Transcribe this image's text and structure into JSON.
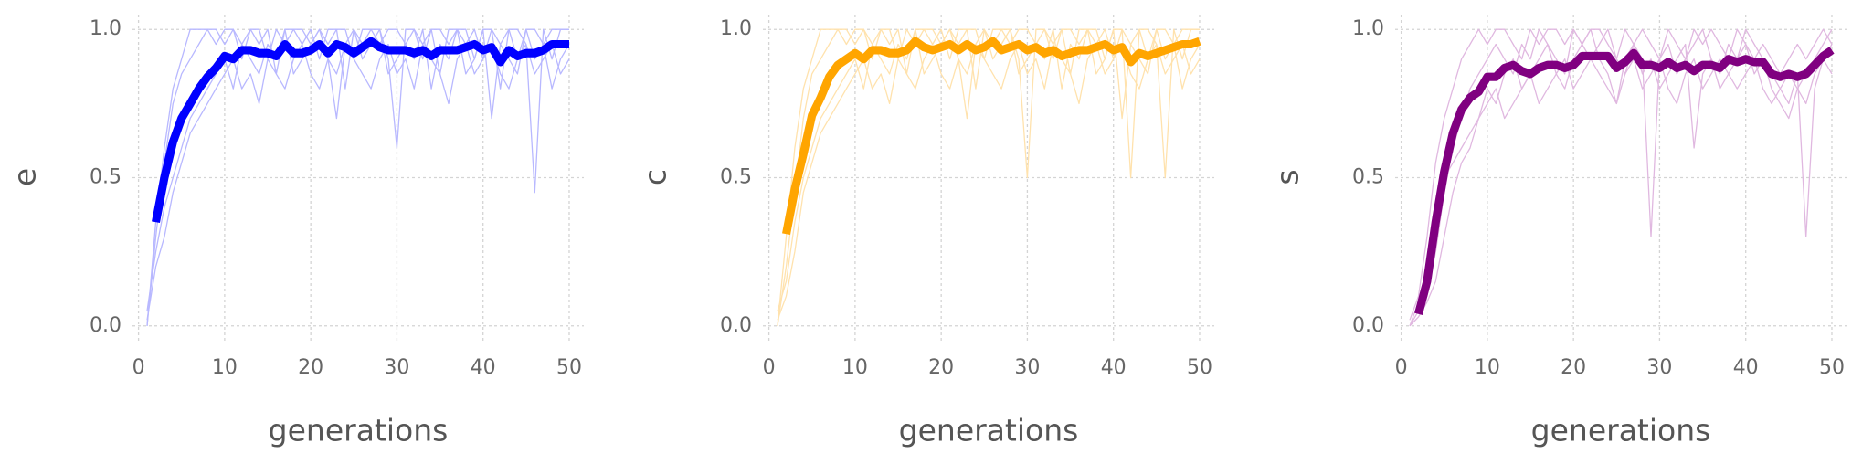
{
  "chart_data": [
    {
      "type": "line",
      "xlabel": "generations",
      "ylabel": "e",
      "x": [
        1,
        2,
        3,
        4,
        5,
        6,
        7,
        8,
        9,
        10,
        11,
        12,
        13,
        14,
        15,
        16,
        17,
        18,
        19,
        20,
        21,
        22,
        23,
        24,
        25,
        26,
        27,
        28,
        29,
        30,
        31,
        32,
        33,
        34,
        35,
        36,
        37,
        38,
        39,
        40,
        41,
        42,
        43,
        44,
        45,
        46,
        47,
        48,
        49,
        50
      ],
      "xlim": [
        -0.7,
        51.7
      ],
      "ylim": [
        -0.05,
        1.05
      ],
      "xticks": [
        0,
        10,
        20,
        30,
        40,
        50
      ],
      "yticks": [
        {
          "value": 0,
          "label": "0.0"
        },
        0.5,
        {
          "value": 1,
          "label": "1.0"
        }
      ],
      "grid": true,
      "series": [
        {
          "color": "#b8b8ff",
          "linewidth": 1,
          "values": [
            0.0,
            0.3,
            0.55,
            0.75,
            0.85,
            0.9,
            0.95,
            1,
            1,
            0.95,
            1,
            0.9,
            1,
            0.95,
            1,
            0.85,
            1,
            1,
            0.95,
            1,
            0.9,
            1,
            1,
            0.8,
            1,
            0.95,
            1,
            1,
            0.9,
            0.6,
            1,
            1,
            0.95,
            1,
            0.85,
            1,
            1,
            0.95,
            1,
            0.9,
            1,
            0.8,
            1,
            1,
            0.95,
            0.45,
            1,
            0.9,
            1,
            1
          ]
        },
        {
          "color": "#b8b8ff",
          "linewidth": 1,
          "values": [
            0.05,
            0.25,
            0.4,
            0.5,
            0.6,
            0.7,
            0.75,
            0.8,
            0.85,
            0.9,
            0.8,
            0.95,
            0.9,
            0.85,
            0.95,
            0.9,
            1,
            0.85,
            0.9,
            0.95,
            1,
            0.9,
            0.7,
            0.95,
            1,
            0.9,
            0.95,
            1,
            0.85,
            0.9,
            0.95,
            0.9,
            1,
            0.8,
            0.95,
            0.9,
            1,
            0.85,
            0.9,
            1,
            0.7,
            0.95,
            0.9,
            0.85,
            1,
            0.9,
            0.95,
            0.8,
            0.9,
            0.95
          ]
        },
        {
          "color": "#b8b8ff",
          "linewidth": 1,
          "values": [
            0.0,
            0.35,
            0.6,
            0.8,
            0.9,
            1,
            1,
            1,
            0.95,
            1,
            1,
            0.95,
            1,
            1,
            0.9,
            1,
            0.95,
            1,
            1,
            0.95,
            1,
            0.95,
            1,
            1,
            0.9,
            1,
            1,
            0.95,
            1,
            1,
            0.95,
            1,
            0.9,
            1,
            1,
            0.95,
            1,
            1,
            0.9,
            1,
            1,
            0.95,
            1,
            0.9,
            1,
            1,
            0.95,
            1,
            1,
            1
          ]
        },
        {
          "color": "#b8b8ff",
          "linewidth": 1,
          "values": [
            0.02,
            0.2,
            0.3,
            0.45,
            0.55,
            0.65,
            0.7,
            0.75,
            0.8,
            0.85,
            0.9,
            0.8,
            0.85,
            0.75,
            0.9,
            0.85,
            0.8,
            0.9,
            0.95,
            0.85,
            0.8,
            0.9,
            0.85,
            0.95,
            0.9,
            0.85,
            0.8,
            0.9,
            0.95,
            0.85,
            0.9,
            0.8,
            0.95,
            0.9,
            0.85,
            0.75,
            0.9,
            0.95,
            0.85,
            0.9,
            0.95,
            0.85,
            0.8,
            0.9,
            0.95,
            0.85,
            0.9,
            0.95,
            0.85,
            0.9
          ]
        },
        {
          "color": "#0000ff",
          "linewidth": 7,
          "values": [
            null,
            0.35,
            0.5,
            0.62,
            0.7,
            0.75,
            0.8,
            0.84,
            0.87,
            0.91,
            0.9,
            0.93,
            0.93,
            0.92,
            0.92,
            0.91,
            0.95,
            0.92,
            0.92,
            0.93,
            0.95,
            0.92,
            0.95,
            0.94,
            0.92,
            0.94,
            0.96,
            0.94,
            0.93,
            0.93,
            0.93,
            0.92,
            0.93,
            0.91,
            0.93,
            0.93,
            0.93,
            0.94,
            0.95,
            0.93,
            0.94,
            0.89,
            0.93,
            0.91,
            0.92,
            0.92,
            0.93,
            0.95,
            0.95,
            0.95
          ]
        }
      ]
    },
    {
      "type": "line",
      "xlabel": "generations",
      "ylabel": "c",
      "x": [
        1,
        2,
        3,
        4,
        5,
        6,
        7,
        8,
        9,
        10,
        11,
        12,
        13,
        14,
        15,
        16,
        17,
        18,
        19,
        20,
        21,
        22,
        23,
        24,
        25,
        26,
        27,
        28,
        29,
        30,
        31,
        32,
        33,
        34,
        35,
        36,
        37,
        38,
        39,
        40,
        41,
        42,
        43,
        44,
        45,
        46,
        47,
        48,
        49,
        50
      ],
      "xlim": [
        -0.7,
        51.7
      ],
      "ylim": [
        -0.05,
        1.05
      ],
      "xticks": [
        0,
        10,
        20,
        30,
        40,
        50
      ],
      "yticks": [
        {
          "value": 0,
          "label": "0.0"
        },
        0.5,
        {
          "value": 1,
          "label": "1.0"
        }
      ],
      "grid": true,
      "series": [
        {
          "color": "#ffe2ad",
          "linewidth": 1,
          "values": [
            0.0,
            0.2,
            0.45,
            0.7,
            0.85,
            0.9,
            0.95,
            1,
            1,
            0.95,
            1,
            0.9,
            1,
            0.95,
            1,
            0.85,
            1,
            1,
            0.95,
            1,
            0.9,
            1,
            1,
            0.8,
            1,
            0.95,
            1,
            1,
            0.9,
            0.5,
            1,
            1,
            0.95,
            1,
            0.85,
            1,
            1,
            0.95,
            1,
            0.9,
            1,
            0.5,
            1,
            1,
            0.95,
            0.5,
            1,
            0.9,
            1,
            1
          ]
        },
        {
          "color": "#ffe2ad",
          "linewidth": 1,
          "values": [
            0.05,
            0.15,
            0.35,
            0.5,
            0.6,
            0.7,
            0.75,
            0.8,
            0.85,
            0.9,
            0.8,
            0.95,
            0.9,
            0.85,
            0.95,
            0.9,
            1,
            0.85,
            0.9,
            0.95,
            1,
            0.9,
            0.7,
            0.95,
            1,
            0.9,
            0.95,
            1,
            0.85,
            0.9,
            0.95,
            0.9,
            1,
            0.8,
            0.95,
            0.9,
            1,
            0.85,
            0.9,
            1,
            0.7,
            0.95,
            0.9,
            0.85,
            1,
            0.9,
            0.95,
            0.8,
            0.9,
            0.95
          ]
        },
        {
          "color": "#ffe2ad",
          "linewidth": 1,
          "values": [
            0.0,
            0.3,
            0.6,
            0.8,
            0.9,
            1,
            1,
            1,
            0.95,
            1,
            1,
            0.95,
            1,
            1,
            0.9,
            1,
            0.95,
            1,
            1,
            0.95,
            1,
            0.95,
            1,
            1,
            0.9,
            1,
            1,
            0.95,
            1,
            1,
            0.95,
            1,
            0.9,
            1,
            1,
            0.95,
            1,
            1,
            0.9,
            1,
            1,
            0.95,
            1,
            0.9,
            1,
            1,
            0.95,
            1,
            1,
            1
          ]
        },
        {
          "color": "#ffe2ad",
          "linewidth": 1,
          "values": [
            0.02,
            0.1,
            0.25,
            0.45,
            0.55,
            0.65,
            0.7,
            0.75,
            0.8,
            0.85,
            0.9,
            0.8,
            0.85,
            0.75,
            0.9,
            0.85,
            0.8,
            0.9,
            0.95,
            0.85,
            0.8,
            0.9,
            0.85,
            0.95,
            0.9,
            0.85,
            0.8,
            0.9,
            0.95,
            0.85,
            0.9,
            0.8,
            0.95,
            0.9,
            0.85,
            0.75,
            0.9,
            0.95,
            0.85,
            0.9,
            0.95,
            0.85,
            0.8,
            0.9,
            0.95,
            0.85,
            0.9,
            0.95,
            0.85,
            0.9
          ]
        },
        {
          "color": "#ffa500",
          "linewidth": 7,
          "values": [
            null,
            0.31,
            0.46,
            0.58,
            0.71,
            0.77,
            0.84,
            0.88,
            0.9,
            0.92,
            0.9,
            0.93,
            0.93,
            0.92,
            0.92,
            0.93,
            0.96,
            0.94,
            0.93,
            0.94,
            0.95,
            0.93,
            0.95,
            0.93,
            0.94,
            0.96,
            0.93,
            0.94,
            0.95,
            0.93,
            0.94,
            0.92,
            0.93,
            0.91,
            0.92,
            0.93,
            0.93,
            0.94,
            0.95,
            0.93,
            0.94,
            0.89,
            0.92,
            0.91,
            0.92,
            0.93,
            0.94,
            0.95,
            0.95,
            0.96
          ]
        }
      ]
    },
    {
      "type": "line",
      "xlabel": "generations",
      "ylabel": "s",
      "x": [
        1,
        2,
        3,
        4,
        5,
        6,
        7,
        8,
        9,
        10,
        11,
        12,
        13,
        14,
        15,
        16,
        17,
        18,
        19,
        20,
        21,
        22,
        23,
        24,
        25,
        26,
        27,
        28,
        29,
        30,
        31,
        32,
        33,
        34,
        35,
        36,
        37,
        38,
        39,
        40,
        41,
        42,
        43,
        44,
        45,
        46,
        47,
        48,
        49,
        50
      ],
      "xlim": [
        -0.7,
        51.7
      ],
      "ylim": [
        -0.05,
        1.05
      ],
      "xticks": [
        0,
        10,
        20,
        30,
        40,
        50
      ],
      "yticks": [
        {
          "value": 0,
          "label": "0.0"
        },
        0.5,
        {
          "value": 1,
          "label": "1.0"
        }
      ],
      "grid": true,
      "series": [
        {
          "color": "#e0b8e0",
          "linewidth": 1,
          "values": [
            0.0,
            0.05,
            0.1,
            0.25,
            0.45,
            0.6,
            0.7,
            0.8,
            0.85,
            0.9,
            0.95,
            0.9,
            0.85,
            0.95,
            0.9,
            1,
            0.95,
            0.9,
            0.85,
            1,
            0.95,
            0.9,
            0.95,
            1,
            0.9,
            0.85,
            0.95,
            0.9,
            0.3,
            0.9,
            0.95,
            0.85,
            0.9,
            0.95,
            1,
            0.9,
            0.85,
            0.95,
            0.9,
            1,
            0.95,
            0.9,
            0.85,
            0.8,
            0.75,
            0.85,
            0.3,
            0.8,
            0.9,
            0.95
          ]
        },
        {
          "color": "#e0b8e0",
          "linewidth": 1,
          "values": [
            0.0,
            0.08,
            0.2,
            0.35,
            0.5,
            0.55,
            0.6,
            0.65,
            0.7,
            0.8,
            0.75,
            0.85,
            0.9,
            0.8,
            0.85,
            0.9,
            0.95,
            0.85,
            0.8,
            0.9,
            0.95,
            1,
            0.9,
            0.85,
            0.75,
            0.9,
            0.95,
            0.85,
            0.9,
            0.8,
            0.85,
            0.9,
            0.95,
            0.6,
            0.85,
            0.9,
            0.8,
            0.85,
            0.9,
            0.95,
            0.85,
            0.9,
            0.8,
            0.75,
            0.7,
            0.8,
            0.85,
            0.9,
            0.95,
            1
          ]
        },
        {
          "color": "#e0b8e0",
          "linewidth": 1,
          "values": [
            0.02,
            0.1,
            0.3,
            0.55,
            0.7,
            0.8,
            0.9,
            0.95,
            1,
            0.95,
            1,
            1,
            0.95,
            0.9,
            1,
            0.95,
            1,
            1,
            0.95,
            1,
            0.95,
            1,
            1,
            0.95,
            0.9,
            1,
            0.95,
            1,
            0.95,
            0.9,
            1,
            0.95,
            0.9,
            1,
            0.95,
            1,
            0.95,
            0.9,
            1,
            0.95,
            0.9,
            0.95,
            0.9,
            0.85,
            0.9,
            0.95,
            0.9,
            0.95,
            1,
            0.95
          ]
        },
        {
          "color": "#e0b8e0",
          "linewidth": 1,
          "values": [
            0.0,
            0.03,
            0.08,
            0.15,
            0.3,
            0.45,
            0.55,
            0.6,
            0.7,
            0.75,
            0.8,
            0.7,
            0.75,
            0.8,
            0.85,
            0.75,
            0.8,
            0.85,
            0.9,
            0.8,
            0.85,
            0.9,
            0.85,
            0.8,
            0.75,
            0.85,
            0.9,
            0.8,
            0.85,
            0.9,
            0.8,
            0.75,
            0.85,
            0.9,
            0.8,
            0.85,
            0.9,
            0.85,
            0.8,
            0.85,
            0.9,
            0.8,
            0.75,
            0.8,
            0.85,
            0.8,
            0.75,
            0.85,
            0.9,
            0.85
          ]
        },
        {
          "color": "#800080",
          "linewidth": 7,
          "values": [
            null,
            0.04,
            0.15,
            0.35,
            0.52,
            0.65,
            0.73,
            0.77,
            0.79,
            0.84,
            0.84,
            0.87,
            0.88,
            0.86,
            0.85,
            0.87,
            0.88,
            0.88,
            0.87,
            0.88,
            0.91,
            0.91,
            0.91,
            0.91,
            0.87,
            0.89,
            0.92,
            0.88,
            0.88,
            0.87,
            0.89,
            0.87,
            0.88,
            0.86,
            0.88,
            0.88,
            0.87,
            0.9,
            0.89,
            0.9,
            0.89,
            0.89,
            0.85,
            0.84,
            0.85,
            0.84,
            0.85,
            0.88,
            0.91,
            0.93
          ]
        }
      ]
    }
  ]
}
